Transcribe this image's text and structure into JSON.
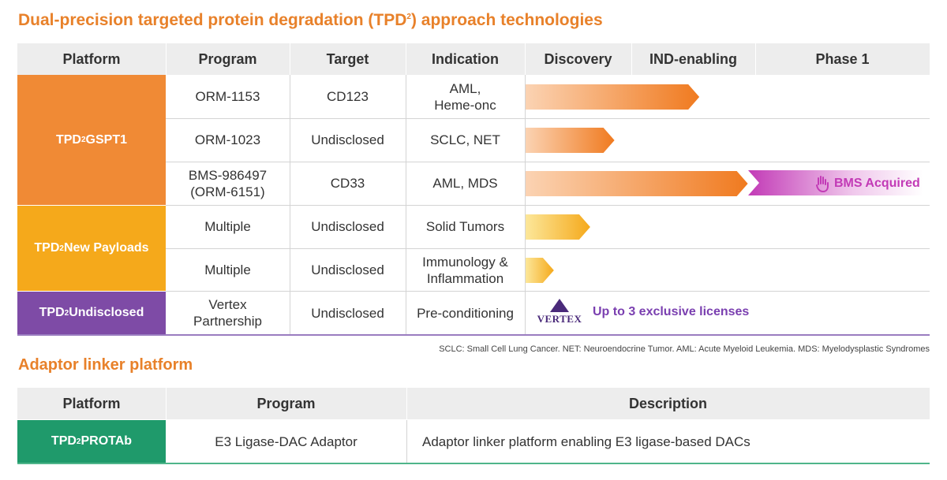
{
  "title": "Dual-precision targeted protein degradation (TPD",
  "title_sup": "2",
  "title_rest": ") approach technologies",
  "table1": {
    "headers": {
      "platform": "Platform",
      "program": "Program",
      "target": "Target",
      "indication": "Indication",
      "discovery": "Discovery",
      "ind": "IND-enabling",
      "phase1": "Phase 1"
    },
    "platforms": {
      "gspt1": {
        "pre": "TPD",
        "sup": "2",
        "post": " GSPT1",
        "color": "#F08A35"
      },
      "payloads": {
        "pre": "TPD",
        "sup": "2",
        "post": " New Payloads",
        "color": "#F5A91B"
      },
      "undisclosed": {
        "pre": "TPD",
        "sup": "2",
        "post": " Undisclosed",
        "color": "#7E4BA6"
      }
    },
    "rows": [
      {
        "program": "ORM-1153",
        "target": "CD123",
        "indication": "AML,\nHeme-onc",
        "progress": 0.43
      },
      {
        "program": "ORM-1023",
        "target": "Undisclosed",
        "indication": "SCLC, NET",
        "progress": 0.22
      },
      {
        "program": "BMS-986497\n(ORM-6151)",
        "target": "CD33",
        "indication": "AML, MDS",
        "progress": 0.55
      },
      {
        "program": "Multiple",
        "target": "Undisclosed",
        "indication": "Solid Tumors",
        "progress": 0.16
      },
      {
        "program": "Multiple",
        "target": "Undisclosed",
        "indication": "Immunology &\nInflammation",
        "progress": 0.07
      },
      {
        "program": "Vertex\nPartnership",
        "target": "Undisclosed",
        "indication": "Pre-conditioning"
      }
    ],
    "bms_label": "BMS Acquired",
    "vertex_logo": "VERTEX",
    "license_text": "Up to 3 exclusive licenses"
  },
  "footnote": "SCLC: Small Cell Lung Cancer. NET: Neuroendocrine Tumor. AML: Acute Myeloid Leukemia. MDS: Myelodysplastic Syndromes",
  "section2_title": "Adaptor linker platform",
  "table2": {
    "headers": {
      "platform": "Platform",
      "program": "Program",
      "description": "Description"
    },
    "platform": {
      "pre": "TPD",
      "sup": "2",
      "post": " PROTAb",
      "color": "#1F9A6B"
    },
    "program": "E3 Ligase-DAC Adaptor",
    "description": "Adaptor linker platform enabling E3 ligase-based DACs"
  },
  "colors": {
    "accent_orange": "#E8812A",
    "bms_magenta": "#C23AB6",
    "vertex_purple": "#7A3FB0"
  }
}
